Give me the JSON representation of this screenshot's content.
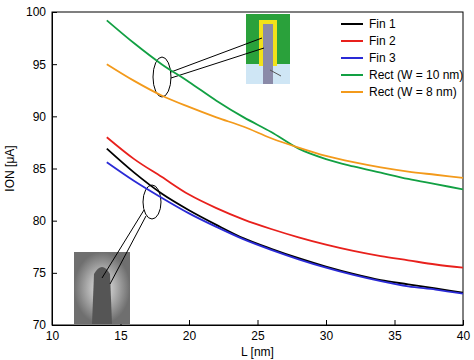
{
  "chart_data": {
    "type": "line",
    "x_label": "L [nm]",
    "y_label": "ION [μA]",
    "x": [
      14,
      16,
      18,
      20,
      22,
      24,
      26,
      28,
      30,
      32,
      34,
      36,
      38,
      40
    ],
    "series": [
      {
        "name": "Fin 1",
        "color": "#000000",
        "values": [
          86.9,
          84.6,
          82.6,
          81.0,
          79.6,
          78.3,
          77.3,
          76.4,
          75.6,
          74.9,
          74.3,
          73.9,
          73.5,
          73.1
        ]
      },
      {
        "name": "Fin 2",
        "color": "#e8201c",
        "values": [
          88.0,
          85.9,
          84.2,
          82.5,
          81.2,
          80.1,
          79.2,
          78.4,
          77.7,
          77.1,
          76.6,
          76.2,
          75.8,
          75.5
        ]
      },
      {
        "name": "Fin 3",
        "color": "#2a2ad6",
        "values": [
          85.6,
          83.8,
          82.2,
          80.7,
          79.4,
          78.2,
          77.2,
          76.3,
          75.5,
          74.8,
          74.2,
          73.7,
          73.4,
          73.0
        ]
      },
      {
        "name": "Rect (W = 10 nm)",
        "color": "#12a043",
        "values": [
          99.2,
          97.0,
          95.0,
          93.3,
          91.5,
          89.9,
          88.5,
          86.9,
          85.9,
          85.2,
          84.6,
          84.0,
          83.5,
          83.0
        ]
      },
      {
        "name": "Rect (W = 8 nm)",
        "color": "#f39a1b",
        "values": [
          95.0,
          93.4,
          92.0,
          90.9,
          89.9,
          89.0,
          87.9,
          87.0,
          86.2,
          85.6,
          85.1,
          84.7,
          84.4,
          84.1
        ]
      }
    ],
    "xlim": [
      10,
      40
    ],
    "xticks": [
      10,
      15,
      20,
      25,
      30,
      35,
      40
    ],
    "ylim": [
      70,
      100
    ],
    "yticks": [
      70,
      75,
      80,
      85,
      90,
      95,
      100
    ],
    "legend": "upper right",
    "grid": false
  }
}
